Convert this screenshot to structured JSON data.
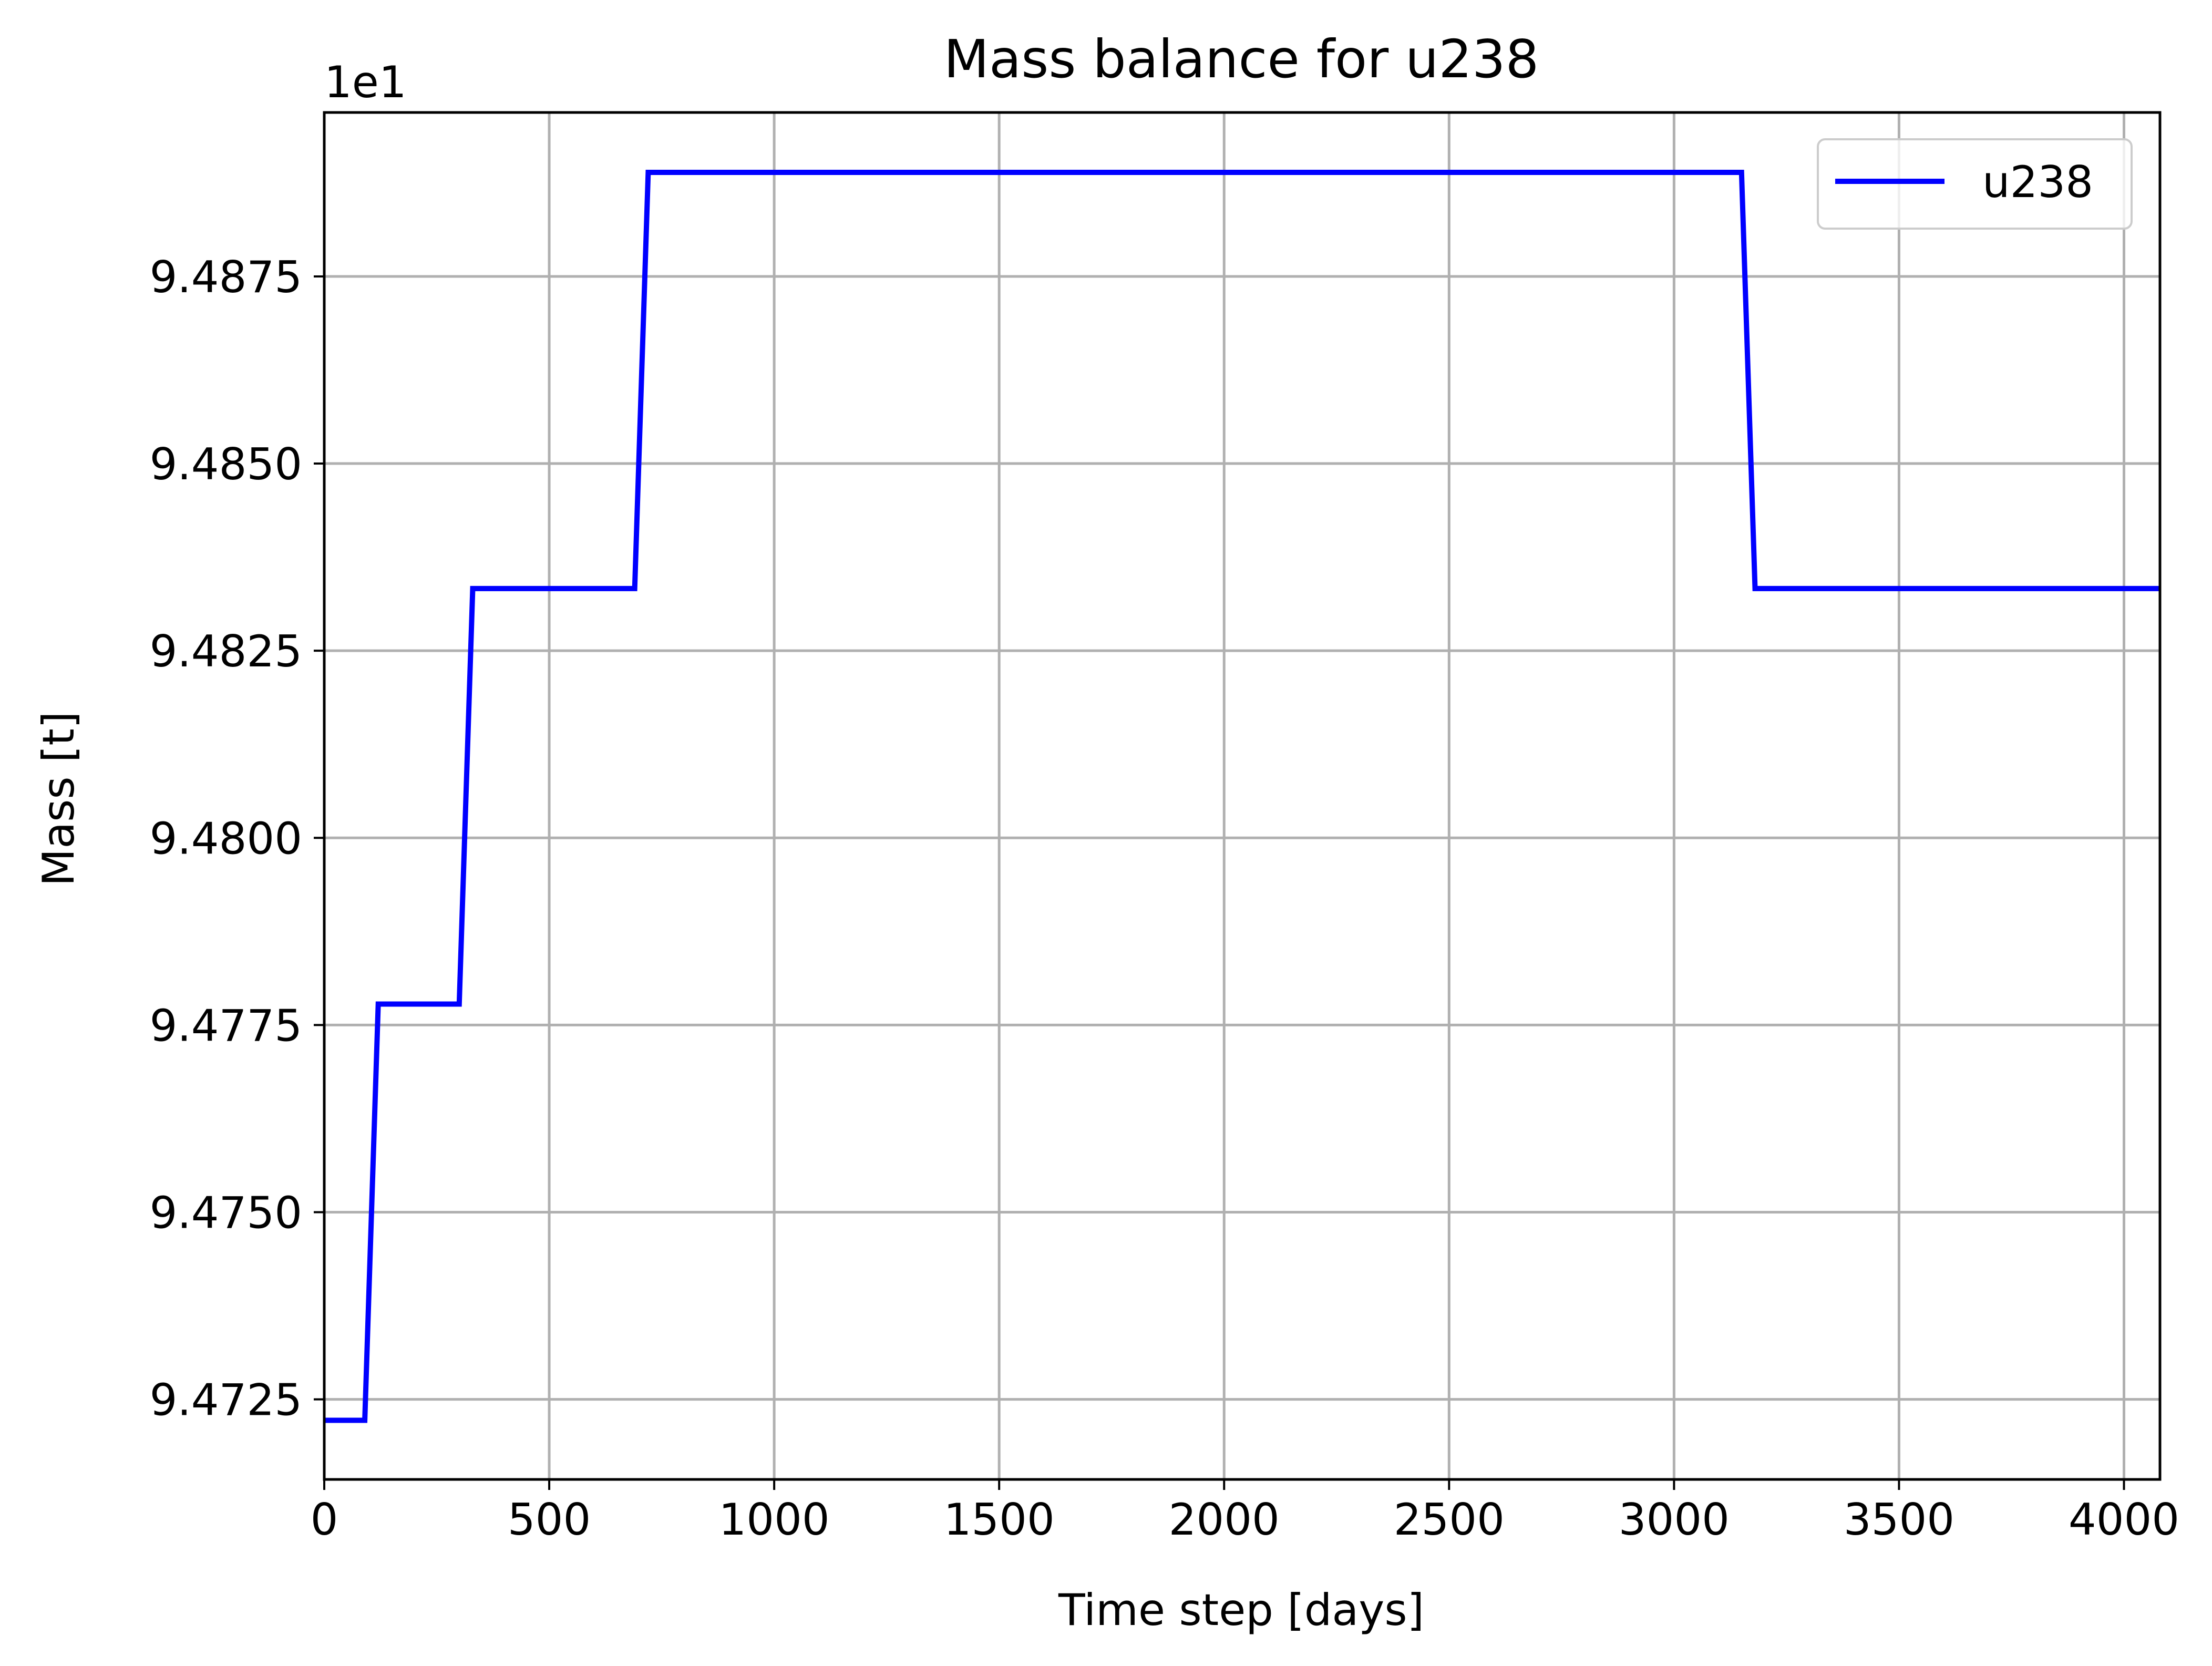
{
  "chart_data": {
    "type": "line",
    "title": "Mass balance for u238",
    "xlabel": "Time step [days]",
    "ylabel": "Mass [t]",
    "y_offset_label": "1e1",
    "xlim": [
      0,
      4080
    ],
    "ylim": [
      9.47143,
      9.48969
    ],
    "x_ticks": [
      0,
      500,
      1000,
      1500,
      2000,
      2500,
      3000,
      3500,
      4000
    ],
    "y_ticks": [
      9.4725,
      9.475,
      9.4775,
      9.48,
      9.4825,
      9.485,
      9.4875
    ],
    "y_tick_labels": [
      "9.4725",
      "9.4750",
      "9.4775",
      "9.4800",
      "9.4825",
      "9.4850",
      "9.4875"
    ],
    "grid": true,
    "legend_position": "top-right",
    "series": [
      {
        "name": "u238",
        "color": "#0000ff",
        "x": [
          0,
          90,
          120,
          300,
          330,
          690,
          720,
          3150,
          3180,
          4080
        ],
        "y": [
          9.47222,
          9.47222,
          9.47778,
          9.47778,
          9.48333,
          9.48333,
          9.48889,
          9.48889,
          9.48333,
          9.48333
        ]
      }
    ]
  }
}
